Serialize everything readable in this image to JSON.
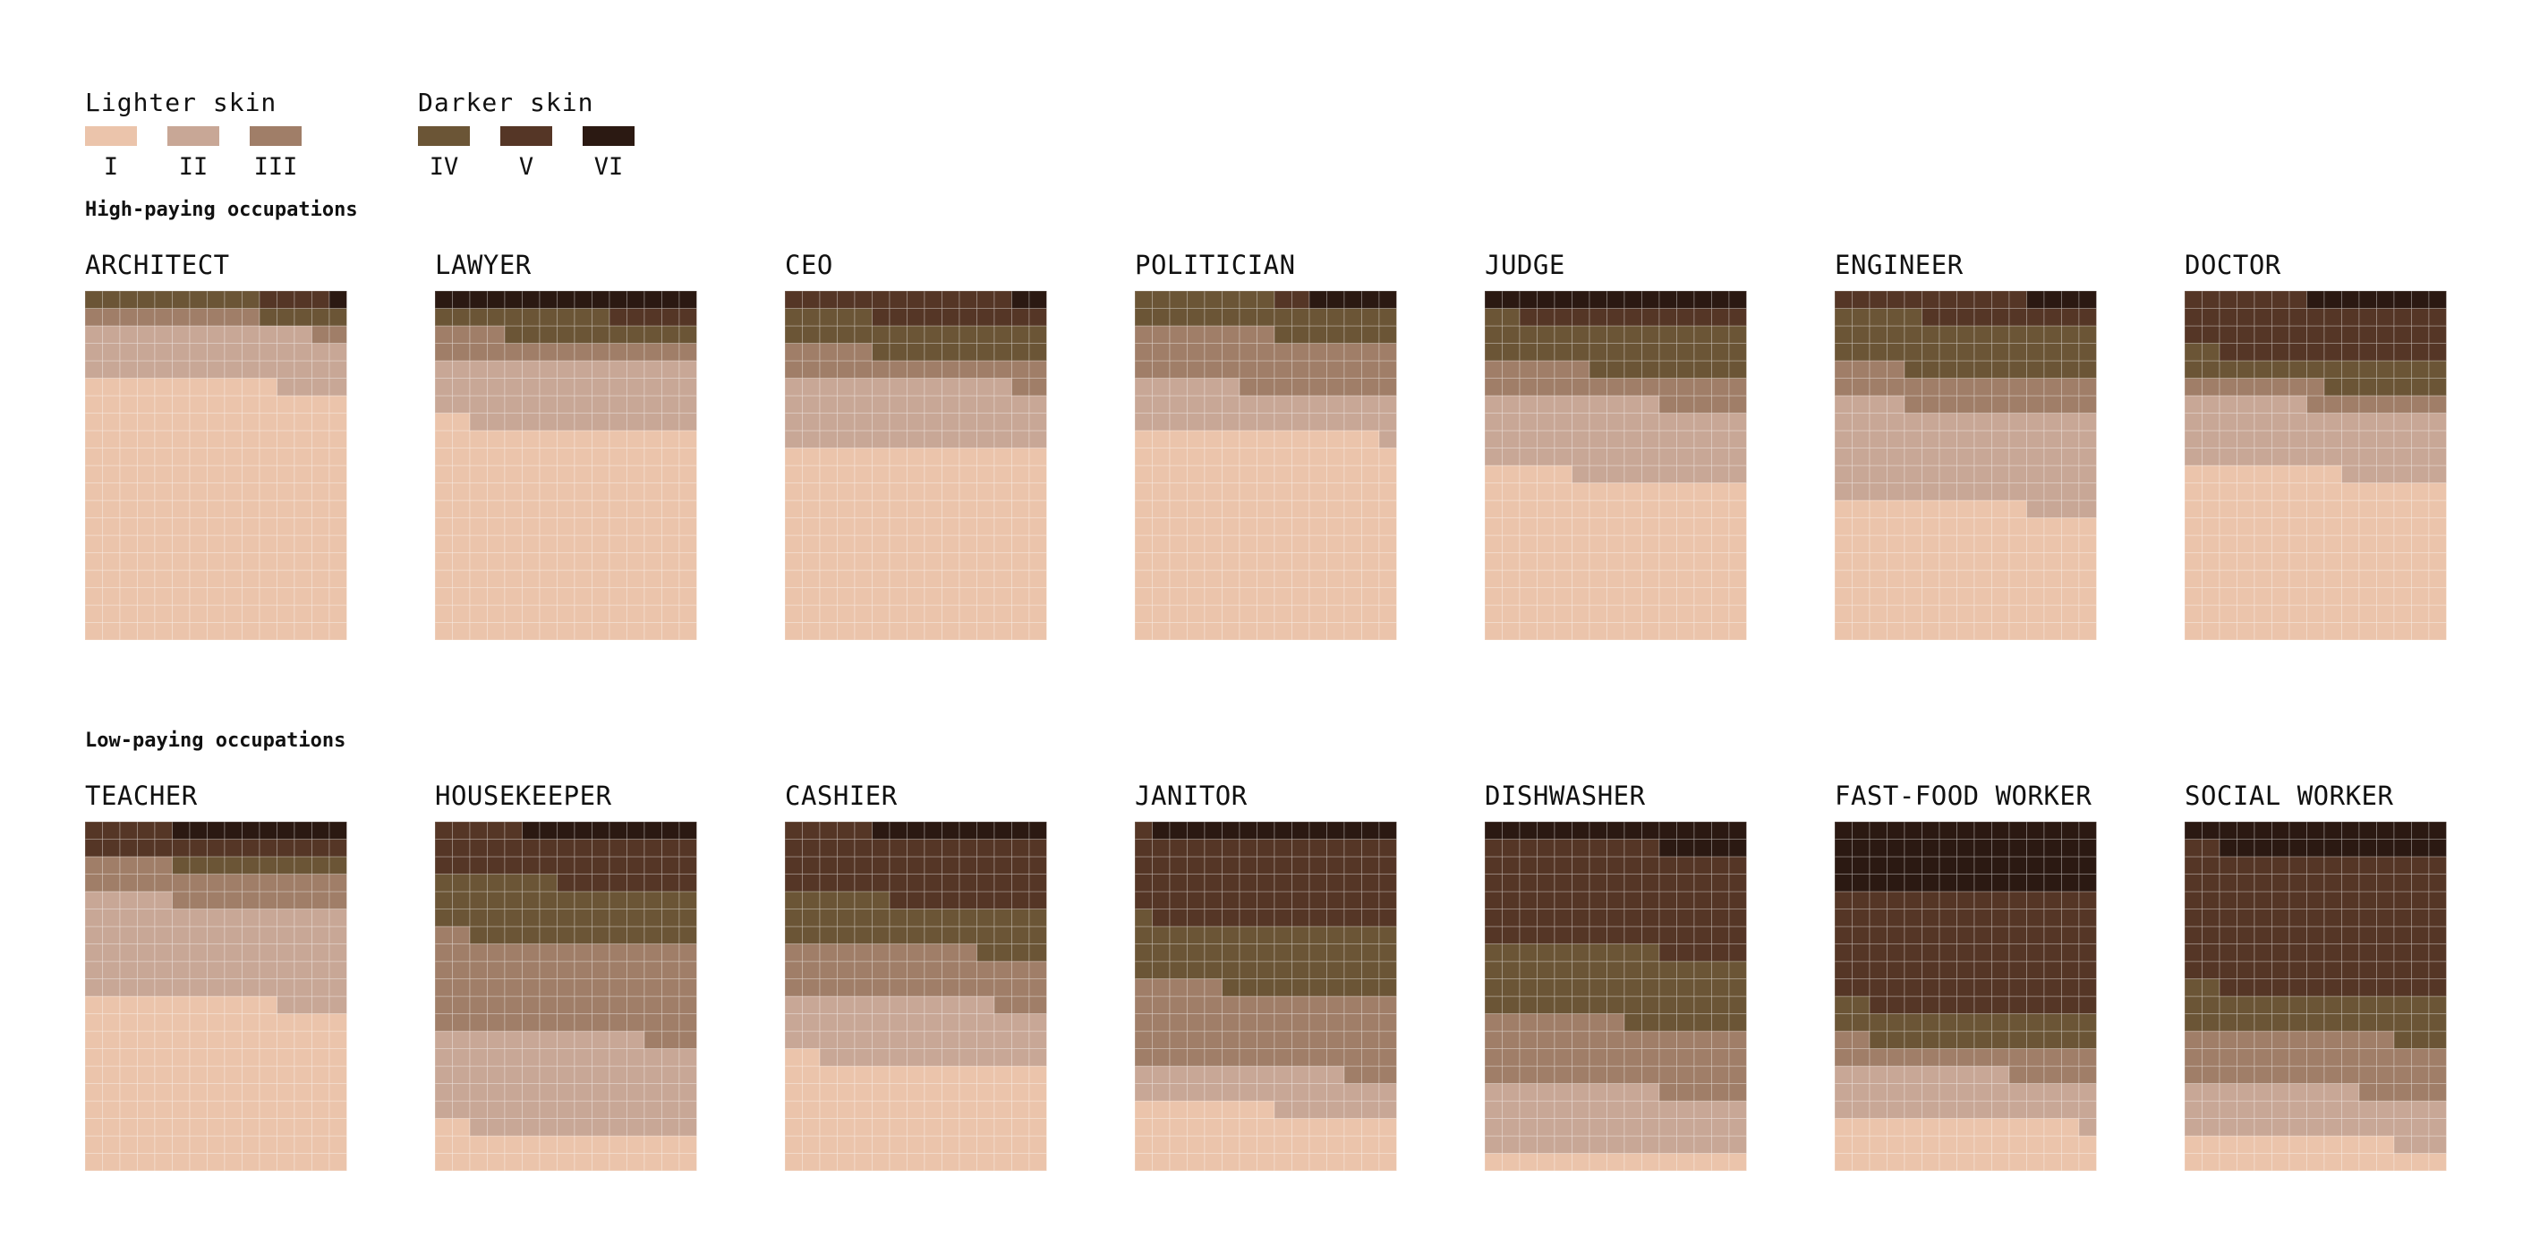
{
  "legend": {
    "lighter_label": "Lighter skin",
    "darker_label": "Darker skin",
    "types": [
      {
        "label": "I",
        "color": "#ebc4ab"
      },
      {
        "label": "II",
        "color": "#c8a796"
      },
      {
        "label": "III",
        "color": "#a07e68"
      },
      {
        "label": "IV",
        "color": "#6b5536"
      },
      {
        "label": "V",
        "color": "#553626"
      },
      {
        "label": "VI",
        "color": "#2b1912"
      }
    ]
  },
  "chart_data": {
    "type": "waffle",
    "grid": {
      "columns": 15,
      "rows": 20
    },
    "categories": [
      "I",
      "II",
      "III",
      "IV",
      "V",
      "VI"
    ],
    "unit": "cells out of 300",
    "groups": [
      {
        "title": "High-paying occupations",
        "occupations": [
          {
            "name": "ARCHITECT",
            "counts": [
              221,
              47,
              12,
              15,
              4,
              1
            ]
          },
          {
            "name": "LAWYER",
            "counts": [
              182,
              58,
              19,
              21,
              5,
              15
            ]
          },
          {
            "name": "CEO",
            "counts": [
              165,
              58,
              22,
              30,
              23,
              2
            ]
          },
          {
            "name": "POLITICIAN",
            "counts": [
              179,
              37,
              47,
              30,
              2,
              5
            ]
          },
          {
            "name": "JUDGE",
            "counts": [
              140,
              65,
              26,
              41,
              13,
              15
            ]
          },
          {
            "name": "ENGINEER",
            "counts": [
              116,
              83,
              30,
              46,
              21,
              4
            ]
          },
          {
            "name": "DOCTOR",
            "counts": [
              144,
              58,
              16,
              24,
              50,
              8
            ]
          }
        ]
      },
      {
        "title": "Low-paying occupations",
        "occupations": [
          {
            "name": "TEACHER",
            "counts": [
              146,
              84,
              30,
              10,
              20,
              10
            ]
          },
          {
            "name": "HOUSEKEEPER",
            "counts": [
              32,
              85,
              80,
              50,
              43,
              10
            ]
          },
          {
            "name": "CASHIER",
            "counts": [
              92,
              55,
              44,
              40,
              59,
              10
            ]
          },
          {
            "name": "JANITOR",
            "counts": [
              53,
              34,
              68,
              56,
              75,
              14
            ]
          },
          {
            "name": "DISHWASHER",
            "counts": [
              15,
              55,
              58,
              62,
              90,
              20
            ]
          },
          {
            "name": "FAST-FOOD WORKER",
            "counts": [
              44,
              41,
              22,
              30,
              103,
              60
            ]
          },
          {
            "name": "SOCIAL WORKER",
            "counts": [
              27,
              43,
              47,
              35,
              120,
              28
            ]
          }
        ]
      }
    ]
  }
}
